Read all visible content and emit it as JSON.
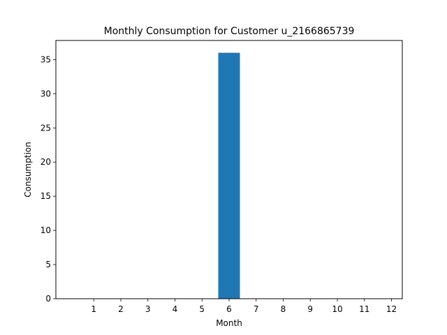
{
  "chart_data": {
    "type": "bar",
    "title": "Monthly Consumption for Customer u_2166865739",
    "xlabel": "Month",
    "ylabel": "Consumption",
    "categories": [
      "1",
      "2",
      "3",
      "4",
      "5",
      "6",
      "7",
      "8",
      "9",
      "10",
      "11",
      "12"
    ],
    "values": [
      0,
      0,
      0,
      0,
      0,
      36,
      0,
      0,
      0,
      0,
      0,
      0
    ],
    "ylim": [
      0,
      37.8
    ],
    "yticks": [
      "0",
      "5",
      "10",
      "15",
      "20",
      "25",
      "30",
      "35"
    ],
    "grid": false,
    "bar_color": "#1f77b4"
  }
}
